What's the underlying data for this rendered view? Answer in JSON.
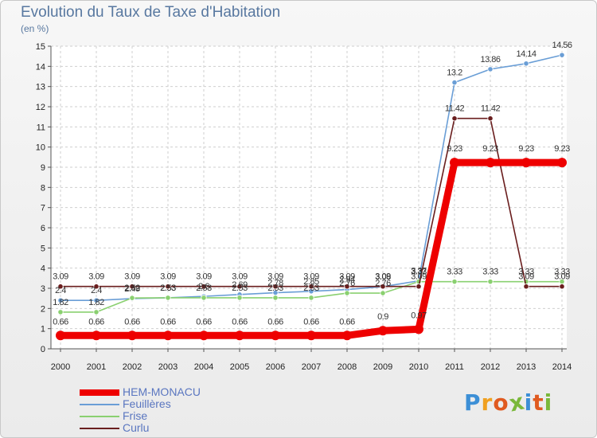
{
  "title": "Evolution du Taux de Taxe d'Habitation",
  "subtitle": "(en %)",
  "logo": {
    "letters": [
      "P",
      "r",
      "o",
      "x",
      "i",
      "t",
      "i"
    ],
    "colors": [
      "#3c8fd6",
      "#f0a020",
      "#e05a20",
      "#7ab83a",
      "#3c8fd6",
      "#e05a20",
      "#7ab83a"
    ]
  },
  "chart_data": {
    "type": "line",
    "x": [
      "2000",
      "2001",
      "2002",
      "2003",
      "2004",
      "2005",
      "2006",
      "2007",
      "2008",
      "2009",
      "2010",
      "2011",
      "2012",
      "2013",
      "2014"
    ],
    "ylim": [
      0,
      15
    ],
    "yticks": [
      "0",
      "1",
      "2",
      "3",
      "4",
      "5",
      "6",
      "7",
      "8",
      "9",
      "10",
      "11",
      "12",
      "13",
      "14",
      "15"
    ],
    "grid": true,
    "legend_position": "bottom-left",
    "series": [
      {
        "name": "HEM-MONACU",
        "color": "#ee0000",
        "values": [
          0.66,
          0.66,
          0.66,
          0.66,
          0.66,
          0.66,
          0.66,
          0.66,
          0.66,
          0.9,
          0.97,
          9.23,
          9.23,
          9.23,
          9.23
        ],
        "labels": [
          "0.66",
          "0.66",
          "0.66",
          "0.66",
          "0.66",
          "0.66",
          "0.66",
          "0.66",
          "0.66",
          "0.9",
          "0.97",
          "9.23",
          "9.23",
          "9.23",
          "9.23"
        ]
      },
      {
        "name": "Feuillères",
        "color": "#6a9ed6",
        "values": [
          2.4,
          2.4,
          2.49,
          2.53,
          2.6,
          2.69,
          2.78,
          2.85,
          2.94,
          3.08,
          3.37,
          13.2,
          13.86,
          14.14,
          14.56
        ],
        "labels": [
          "2.4",
          "2.4",
          "2.49",
          "2.53",
          "2.6",
          "2.69",
          "2.78",
          "2.85",
          "2.94",
          "3.08",
          "3.37",
          "13.2",
          "13.86",
          "14.14",
          "14.56"
        ]
      },
      {
        "name": "Frise",
        "color": "#8ad070",
        "values": [
          1.82,
          1.82,
          2.52,
          2.53,
          2.53,
          2.53,
          2.53,
          2.53,
          2.76,
          2.76,
          3.33,
          3.33,
          3.33,
          3.33,
          3.33
        ],
        "labels": [
          "1.82",
          "1.82",
          "2.52",
          "2.53",
          "2.53",
          "2.53",
          "2.53",
          "2.53",
          "2.76",
          "2.76",
          "3.33",
          "3.33",
          "3.33",
          "3.33",
          "3.33"
        ]
      },
      {
        "name": "Curlu",
        "color": "#6a1e1e",
        "values": [
          3.09,
          3.09,
          3.09,
          3.09,
          3.09,
          3.09,
          3.09,
          3.09,
          3.09,
          3.09,
          3.09,
          11.42,
          11.42,
          3.09,
          3.09
        ],
        "labels": [
          "3.09",
          "3.09",
          "3.09",
          "3.09",
          "3.09",
          "3.09",
          "3.09",
          "3.09",
          "3.09",
          "3.09",
          "3.09",
          "11.42",
          "11.42",
          "3.09",
          "3.09"
        ]
      }
    ]
  }
}
